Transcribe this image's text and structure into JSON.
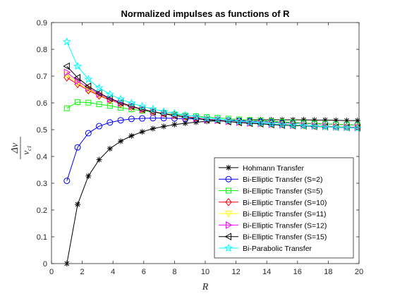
{
  "chart_data": {
    "type": "line",
    "title": "Normalized impulses as functions of R",
    "xlabel": "R",
    "ylabel_numerator": "Δv",
    "ylabel_denominator_base": "v",
    "ylabel_denominator_sub": "c1",
    "xlim": [
      0,
      20
    ],
    "ylim": [
      0,
      0.9
    ],
    "xticks": [
      0,
      2,
      4,
      6,
      8,
      10,
      12,
      14,
      16,
      18,
      20
    ],
    "yticks": [
      0,
      0.1,
      0.2,
      0.3,
      0.4,
      0.5,
      0.6,
      0.7,
      0.8,
      0.9
    ],
    "ytick_labels": [
      "0",
      "0.1",
      "0.2",
      "0.3",
      "0.4",
      "0.5",
      "0.6",
      "0.7",
      "0.8",
      "0.9"
    ],
    "grid": false,
    "legend_position": "bottom-right",
    "x": [
      1,
      1.7,
      2.4,
      3.1,
      3.8,
      4.5,
      5.2,
      5.9,
      6.6,
      7.3,
      8.0,
      8.7,
      9.4,
      10.1,
      10.8,
      11.5,
      12.2,
      12.9,
      13.6,
      14.3,
      15.0,
      15.7,
      16.4,
      17.1,
      17.8,
      18.5,
      19.2,
      19.9
    ],
    "series": [
      {
        "name": "Hohmann Transfer",
        "color": "#000000",
        "marker": "asterisk",
        "values": [
          0.0,
          0.221,
          0.327,
          0.388,
          0.429,
          0.457,
          0.477,
          0.492,
          0.504,
          0.512,
          0.519,
          0.524,
          0.528,
          0.531,
          0.533,
          0.535,
          0.536,
          0.537,
          0.537,
          0.537,
          0.537,
          0.537,
          0.537,
          0.536,
          0.536,
          0.535,
          0.534,
          0.534
        ]
      },
      {
        "name": "Bi-Elliptic Transfer (S=2)",
        "color": "#0000ff",
        "marker": "circle",
        "values": [
          0.309,
          0.434,
          0.487,
          0.513,
          0.527,
          0.535,
          0.54,
          0.542,
          0.543,
          0.543,
          0.542,
          0.541,
          0.54,
          0.538,
          0.537,
          0.535,
          0.533,
          0.532,
          0.53,
          0.528,
          0.527,
          0.525,
          0.524,
          0.522,
          0.521,
          0.52,
          0.518,
          0.517
        ]
      },
      {
        "name": "Bi-Elliptic Transfer (S=5)",
        "color": "#00ff00",
        "marker": "square",
        "values": [
          0.58,
          0.603,
          0.601,
          0.595,
          0.589,
          0.582,
          0.576,
          0.571,
          0.566,
          0.561,
          0.557,
          0.553,
          0.55,
          0.547,
          0.544,
          0.541,
          0.538,
          0.536,
          0.534,
          0.531,
          0.529,
          0.527,
          0.525,
          0.523,
          0.522,
          0.52,
          0.519,
          0.517
        ]
      },
      {
        "name": "Bi-Elliptic Transfer (S=10)",
        "color": "#ff0000",
        "marker": "diamond",
        "values": [
          0.695,
          0.67,
          0.647,
          0.627,
          0.611,
          0.597,
          0.585,
          0.575,
          0.567,
          0.56,
          0.554,
          0.548,
          0.544,
          0.539,
          0.536,
          0.532,
          0.529,
          0.526,
          0.524,
          0.522,
          0.52,
          0.518,
          0.516,
          0.514,
          0.513,
          0.511,
          0.51,
          0.509
        ]
      },
      {
        "name": "Bi-Elliptic Transfer (S=11)",
        "color": "#ffff00",
        "marker": "triangle-down",
        "values": [
          0.705,
          0.676,
          0.651,
          0.63,
          0.613,
          0.598,
          0.586,
          0.576,
          0.567,
          0.56,
          0.554,
          0.548,
          0.543,
          0.539,
          0.535,
          0.532,
          0.529,
          0.526,
          0.523,
          0.521,
          0.519,
          0.517,
          0.515,
          0.514,
          0.512,
          0.511,
          0.51,
          0.508
        ]
      },
      {
        "name": "Bi-Elliptic Transfer (S=12)",
        "color": "#ff00ff",
        "marker": "triangle-right",
        "values": [
          0.714,
          0.682,
          0.655,
          0.633,
          0.614,
          0.599,
          0.587,
          0.576,
          0.567,
          0.56,
          0.553,
          0.548,
          0.543,
          0.538,
          0.535,
          0.531,
          0.528,
          0.525,
          0.523,
          0.52,
          0.518,
          0.516,
          0.515,
          0.513,
          0.512,
          0.51,
          0.509,
          0.508
        ]
      },
      {
        "name": "Bi-Elliptic Transfer (S=15)",
        "color": "#000000",
        "marker": "triangle-left",
        "values": [
          0.737,
          0.694,
          0.662,
          0.637,
          0.617,
          0.601,
          0.588,
          0.576,
          0.567,
          0.559,
          0.553,
          0.547,
          0.542,
          0.537,
          0.534,
          0.53,
          0.527,
          0.524,
          0.522,
          0.519,
          0.517,
          0.515,
          0.514,
          0.512,
          0.511,
          0.509,
          0.508,
          0.507
        ]
      },
      {
        "name": "Bi-Parabolic Transfer",
        "color": "#00ffff",
        "marker": "star",
        "values": [
          0.828,
          0.737,
          0.688,
          0.656,
          0.632,
          0.614,
          0.599,
          0.587,
          0.577,
          0.568,
          0.561,
          0.554,
          0.549,
          0.543,
          0.539,
          0.535,
          0.531,
          0.528,
          0.525,
          0.522,
          0.519,
          0.517,
          0.515,
          0.513,
          0.511,
          0.509,
          0.508,
          0.506
        ]
      }
    ]
  }
}
